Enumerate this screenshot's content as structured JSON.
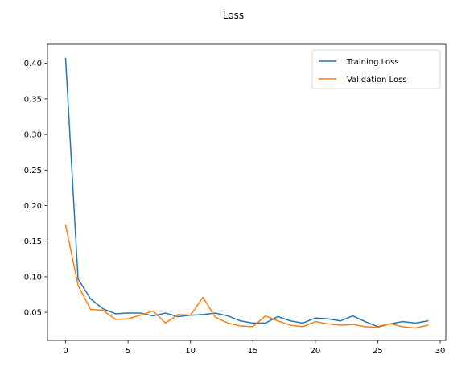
{
  "chart_data": {
    "type": "line",
    "title": "Loss",
    "xlabel": "",
    "ylabel": "",
    "xlim": [
      -1.45,
      30.45
    ],
    "ylim": [
      0.0106,
      0.4268
    ],
    "xticks": [
      0,
      5,
      10,
      15,
      20,
      25,
      30
    ],
    "yticks": [
      0.05,
      0.1,
      0.15,
      0.2,
      0.25,
      0.3,
      0.35,
      0.4
    ],
    "ytick_labels": [
      "0.05",
      "0.10",
      "0.15",
      "0.20",
      "0.25",
      "0.30",
      "0.35",
      "0.40"
    ],
    "grid": false,
    "legend_position": "top-right",
    "x": [
      0,
      1,
      2,
      3,
      4,
      5,
      6,
      7,
      8,
      9,
      10,
      11,
      12,
      13,
      14,
      15,
      16,
      17,
      18,
      19,
      20,
      21,
      22,
      23,
      24,
      25,
      26,
      27,
      28,
      29
    ],
    "series": [
      {
        "name": "Training Loss",
        "color": "#1f77b4",
        "values": [
          0.407,
          0.097,
          0.069,
          0.055,
          0.048,
          0.049,
          0.049,
          0.045,
          0.049,
          0.044,
          0.046,
          0.047,
          0.049,
          0.045,
          0.038,
          0.035,
          0.035,
          0.044,
          0.038,
          0.035,
          0.042,
          0.041,
          0.038,
          0.045,
          0.037,
          0.03,
          0.034,
          0.037,
          0.035,
          0.038
        ]
      },
      {
        "name": "Validation Loss",
        "color": "#ff7f0e",
        "values": [
          0.173,
          0.088,
          0.054,
          0.053,
          0.04,
          0.041,
          0.046,
          0.052,
          0.035,
          0.047,
          0.046,
          0.071,
          0.043,
          0.035,
          0.031,
          0.03,
          0.045,
          0.038,
          0.032,
          0.03,
          0.037,
          0.034,
          0.032,
          0.033,
          0.03,
          0.029,
          0.034,
          0.03,
          0.028,
          0.032
        ]
      }
    ]
  }
}
